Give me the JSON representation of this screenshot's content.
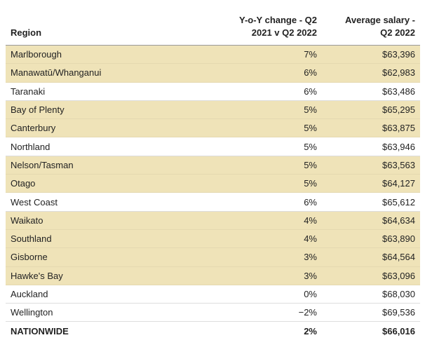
{
  "table": {
    "headers": {
      "region": "Region",
      "change_line1": "Y-o-Y change - Q2",
      "change_line2": "2021 v Q2 2022",
      "salary_line1": "Average salary -",
      "salary_line2": "Q2 2022"
    },
    "highlight_color": "#efe3b8",
    "rows": [
      {
        "region": "Marlborough",
        "change": "7%",
        "salary": "$63,396",
        "highlight": true
      },
      {
        "region": "Manawatū/Whanganui",
        "change": "6%",
        "salary": "$62,983",
        "highlight": true
      },
      {
        "region": "Taranaki",
        "change": "6%",
        "salary": "$63,486",
        "highlight": false
      },
      {
        "region": "Bay of Plenty",
        "change": "5%",
        "salary": "$65,295",
        "highlight": true
      },
      {
        "region": "Canterbury",
        "change": "5%",
        "salary": "$63,875",
        "highlight": true
      },
      {
        "region": "Northland",
        "change": "5%",
        "salary": "$63,946",
        "highlight": false
      },
      {
        "region": "Nelson/Tasman",
        "change": "5%",
        "salary": "$63,563",
        "highlight": true
      },
      {
        "region": "Otago",
        "change": "5%",
        "salary": "$64,127",
        "highlight": true
      },
      {
        "region": "West Coast",
        "change": "6%",
        "salary": "$65,612",
        "highlight": false
      },
      {
        "region": "Waikato",
        "change": "4%",
        "salary": "$64,634",
        "highlight": true
      },
      {
        "region": "Southland",
        "change": "4%",
        "salary": "$63,890",
        "highlight": true
      },
      {
        "region": "Gisborne",
        "change": "3%",
        "salary": "$64,564",
        "highlight": true
      },
      {
        "region": "Hawke's Bay",
        "change": "3%",
        "salary": "$63,096",
        "highlight": true
      },
      {
        "region": "Auckland",
        "change": "0%",
        "salary": "$68,030",
        "highlight": false
      },
      {
        "region": "Wellington",
        "change": "−2%",
        "salary": "$69,536",
        "highlight": false
      }
    ],
    "total": {
      "region": "NATIONWIDE",
      "change": "2%",
      "salary": "$66,016"
    }
  }
}
